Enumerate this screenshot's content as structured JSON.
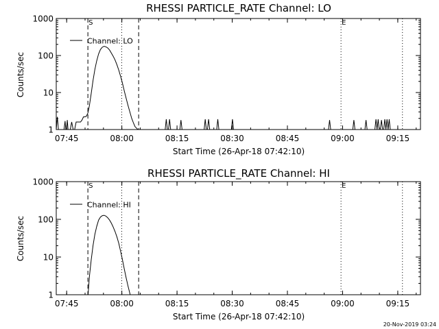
{
  "footer_timestamp": "20-Nov-2019 03:24",
  "chart_data": [
    {
      "type": "line",
      "title": "RHESSI PARTICLE_RATE Channel: LO",
      "xlabel": "Start Time (26-Apr-18 07:42:10)",
      "ylabel": "Counts/sec",
      "x_unit": "minutes after 07:42:10",
      "xlim": [
        0,
        99
      ],
      "ylim": [
        1,
        1000
      ],
      "yscale": "log",
      "x_ticks": [
        {
          "x": 2.83,
          "label": "07:45"
        },
        {
          "x": 17.83,
          "label": "08:00"
        },
        {
          "x": 32.83,
          "label": "08:15"
        },
        {
          "x": 47.83,
          "label": "08:30"
        },
        {
          "x": 62.83,
          "label": "08:45"
        },
        {
          "x": 77.83,
          "label": "09:00"
        },
        {
          "x": 92.83,
          "label": "09:15"
        }
      ],
      "y_ticks": [
        {
          "y": 1,
          "label": "1"
        },
        {
          "y": 10,
          "label": "10"
        },
        {
          "y": 100,
          "label": "100"
        },
        {
          "y": 1000,
          "label": "1000"
        }
      ],
      "legend": {
        "position": "top-left",
        "label": "Channel: LO"
      },
      "markers": [
        {
          "x": 8.6,
          "label": "S",
          "style": "dashed"
        },
        {
          "x": 17.8,
          "label": "",
          "style": "dotted"
        },
        {
          "x": 22.4,
          "label": "",
          "style": "dashed"
        },
        {
          "x": 77.4,
          "label": "E",
          "style": "dotted"
        },
        {
          "x": 94.1,
          "label": "",
          "style": "dotted"
        }
      ],
      "x": [
        0,
        0.3,
        0.6,
        0.9,
        1.2,
        1.5,
        1.8,
        2.1,
        2.4,
        2.6,
        2.8,
        3.0,
        3.2,
        3.4,
        3.8,
        4.2,
        4.6,
        5.0,
        5.4,
        5.8,
        6.2,
        6.6,
        7.0,
        7.4,
        7.8,
        8.2,
        8.6,
        9.0,
        9.5,
        10.0,
        10.5,
        11.0,
        11.5,
        12.0,
        12.5,
        13.0,
        13.5,
        14.0,
        14.5,
        15.0,
        15.5,
        16.0,
        16.5,
        17.0,
        17.5,
        18.0,
        18.5,
        19.0,
        19.5,
        20.0,
        20.5,
        21.0,
        21.4,
        21.8,
        22.2,
        22.5,
        22.8,
        23.2,
        26.0,
        29.6,
        29.9,
        30.2,
        30.5,
        30.8,
        31.1,
        33.6,
        33.9,
        34.2,
        40.2,
        40.5,
        40.8,
        41.1,
        41.4,
        41.7,
        42.0,
        43.6,
        43.9,
        44.2,
        44.5,
        44.8,
        47.6,
        47.9,
        48.2,
        60.5,
        74.0,
        74.3,
        74.6,
        80.6,
        80.9,
        81.2,
        83.9,
        84.2,
        84.5,
        86.6,
        86.9,
        87.2,
        87.5,
        87.8,
        88.1,
        88.4,
        88.7,
        89.0,
        89.3,
        89.6,
        89.9,
        90.2,
        90.5,
        90.8,
        91.1,
        99
      ],
      "y": [
        1.0,
        2.2,
        1.0,
        1.0,
        1.0,
        1.0,
        1.0,
        1.0,
        1.7,
        1.0,
        1.0,
        1.8,
        1.0,
        1.0,
        1.0,
        1.6,
        1.0,
        1.0,
        1.6,
        1.6,
        1.6,
        1.6,
        1.8,
        2.2,
        2.2,
        2.3,
        2.8,
        4.4,
        9.5,
        21,
        42,
        72,
        110,
        145,
        167,
        178,
        172,
        160,
        140,
        115,
        95,
        75,
        56,
        40,
        27,
        18,
        11,
        7.0,
        4.5,
        3.0,
        2.0,
        1.5,
        1.2,
        1.1,
        1.0,
        1.0,
        1.0,
        1.0,
        1.0,
        1.0,
        1.9,
        1.0,
        1.0,
        1.9,
        1.0,
        1.0,
        1.8,
        1.0,
        1.0,
        1.9,
        1.0,
        1.0,
        1.9,
        1.0,
        1.0,
        1.0,
        1.9,
        1.0,
        1.0,
        1.0,
        1.0,
        1.9,
        1.0,
        1.0,
        1.0,
        1.8,
        1.0,
        1.0,
        1.8,
        1.0,
        1.0,
        1.8,
        1.0,
        1.0,
        1.9,
        1.0,
        1.9,
        1.0,
        1.0,
        1.8,
        1.0,
        1.0,
        1.9,
        1.0,
        1.9,
        1.0,
        1.9,
        1.0,
        1.0,
        1.0
      ]
    },
    {
      "type": "line",
      "title": "RHESSI PARTICLE_RATE Channel: HI",
      "xlabel": "Start Time (26-Apr-18 07:42:10)",
      "ylabel": "Counts/sec",
      "x_unit": "minutes after 07:42:10",
      "xlim": [
        0,
        99
      ],
      "ylim": [
        1,
        1000
      ],
      "yscale": "log",
      "x_ticks": [
        {
          "x": 2.83,
          "label": "07:45"
        },
        {
          "x": 17.83,
          "label": "08:00"
        },
        {
          "x": 32.83,
          "label": "08:15"
        },
        {
          "x": 47.83,
          "label": "08:30"
        },
        {
          "x": 62.83,
          "label": "08:45"
        },
        {
          "x": 77.83,
          "label": "09:00"
        },
        {
          "x": 92.83,
          "label": "09:15"
        }
      ],
      "y_ticks": [
        {
          "y": 1,
          "label": "1"
        },
        {
          "y": 10,
          "label": "10"
        },
        {
          "y": 100,
          "label": "100"
        },
        {
          "y": 1000,
          "label": "1000"
        }
      ],
      "legend": {
        "position": "top-left",
        "label": "Channel: HI"
      },
      "markers": [
        {
          "x": 8.6,
          "label": "S",
          "style": "dashed"
        },
        {
          "x": 17.8,
          "label": "",
          "style": "dotted"
        },
        {
          "x": 22.4,
          "label": "",
          "style": "dashed"
        },
        {
          "x": 77.4,
          "label": "E",
          "style": "dotted"
        },
        {
          "x": 94.1,
          "label": "",
          "style": "dotted"
        }
      ],
      "x": [
        8.65,
        9.0,
        9.5,
        10.0,
        10.5,
        11.0,
        11.5,
        12.0,
        12.5,
        13.0,
        13.5,
        14.0,
        14.5,
        15.0,
        15.5,
        16.0,
        16.5,
        17.0,
        17.5,
        18.0,
        18.5,
        19.0,
        19.5,
        20.1
      ],
      "y": [
        1.0,
        3.0,
        8.5,
        20,
        40,
        65,
        95,
        115,
        125,
        128,
        122,
        110,
        95,
        78,
        62,
        47,
        34,
        23,
        14,
        8.5,
        4.8,
        2.8,
        1.7,
        1.0
      ]
    }
  ]
}
